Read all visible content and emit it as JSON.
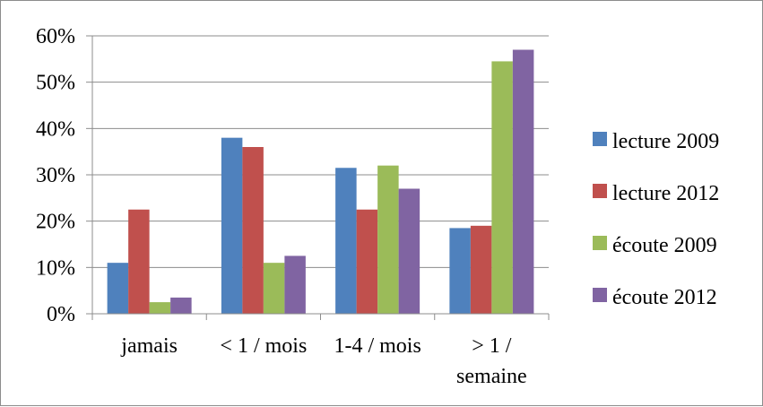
{
  "chart_data": {
    "type": "bar",
    "categories": [
      [
        "jamais"
      ],
      [
        "< 1 / mois"
      ],
      [
        "1-4 / mois"
      ],
      [
        "> 1 /",
        "semaine"
      ]
    ],
    "series": [
      {
        "name": "lecture 2009",
        "values": [
          0.11,
          0.38,
          0.315,
          0.185
        ],
        "color": "#4f81bd"
      },
      {
        "name": "lecture 2012",
        "values": [
          0.225,
          0.36,
          0.225,
          0.19
        ],
        "color": "#c0504d"
      },
      {
        "name": "écoute 2009",
        "values": [
          0.025,
          0.11,
          0.32,
          0.545
        ],
        "color": "#9bbb59"
      },
      {
        "name": "écoute 2012",
        "values": [
          0.035,
          0.125,
          0.27,
          0.57
        ],
        "color": "#8064a2"
      }
    ],
    "yticks": [
      "0%",
      "10%",
      "20%",
      "30%",
      "40%",
      "50%",
      "60%"
    ],
    "ylim": [
      0,
      0.6
    ],
    "grid": true,
    "legend_position": "right",
    "title": "",
    "xlabel": "",
    "ylabel": ""
  }
}
